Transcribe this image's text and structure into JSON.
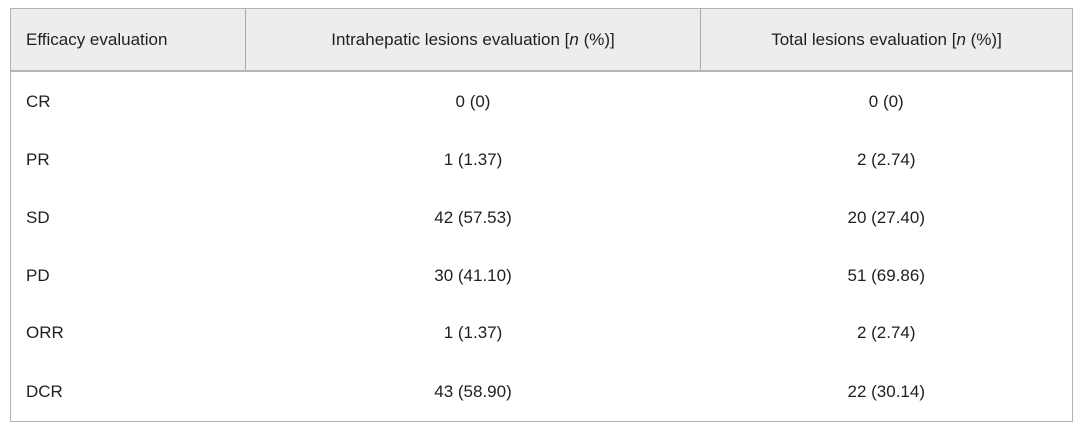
{
  "table": {
    "headers": {
      "efficacy": "Efficacy evaluation",
      "intrahepatic_prefix": "Intrahepatic lesions evaluation [",
      "total_prefix": "Total lesions evaluation [",
      "n_symbol": "n",
      "unit_suffix": " (%)]"
    },
    "rows": [
      {
        "label": "CR",
        "intrahepatic": "0 (0)",
        "total": "0 (0)"
      },
      {
        "label": "PR",
        "intrahepatic": "1 (1.37)",
        "total": "2 (2.74)"
      },
      {
        "label": "SD",
        "intrahepatic": "42 (57.53)",
        "total": "20 (27.40)"
      },
      {
        "label": "PD",
        "intrahepatic": "30 (41.10)",
        "total": "51 (69.86)"
      },
      {
        "label": "ORR",
        "intrahepatic": "1 (1.37)",
        "total": "2 (2.74)"
      },
      {
        "label": "DCR",
        "intrahepatic": "43 (58.90)",
        "total": "22 (30.14)"
      }
    ]
  },
  "colors": {
    "header_background": "#ededed",
    "border": "#b3b3b3",
    "header_divider": "#a9a9a9",
    "text": "#1f1f1f",
    "page_background": "#ffffff"
  }
}
